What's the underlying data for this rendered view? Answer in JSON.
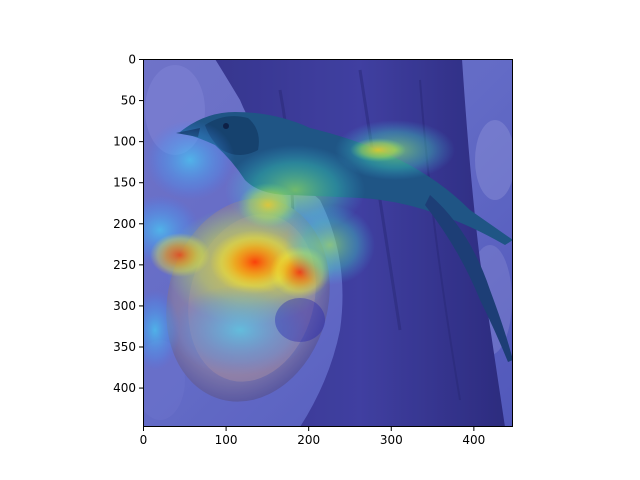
{
  "figure": {
    "kind": "heatmap overlay on photograph",
    "image_subject": "songbird perched on a tree trunk eating from a halved orange",
    "colormap": "jet",
    "frame_color": "#000000"
  },
  "axes": {
    "x": {
      "range": [
        0,
        448
      ],
      "ticks": [
        0,
        100,
        200,
        300,
        400
      ],
      "tick_labels": [
        "0",
        "100",
        "200",
        "300",
        "400"
      ]
    },
    "y": {
      "range": [
        0,
        448
      ],
      "inverted": true,
      "ticks": [
        0,
        50,
        100,
        150,
        200,
        250,
        300,
        350,
        400
      ],
      "tick_labels": [
        "0",
        "50",
        "100",
        "150",
        "200",
        "250",
        "300",
        "350",
        "400"
      ]
    }
  },
  "chart_data": {
    "type": "heatmap",
    "xlim": [
      0,
      448
    ],
    "ylim": [
      448,
      0
    ],
    "grid": false,
    "hotspots": [
      {
        "name": "orange center",
        "x": 130,
        "y": 250,
        "level": "high"
      },
      {
        "name": "orange right",
        "x": 185,
        "y": 260,
        "level": "high"
      },
      {
        "name": "left edge",
        "x": 45,
        "y": 240,
        "level": "high"
      },
      {
        "name": "legs",
        "x": 150,
        "y": 215,
        "level": "medium"
      },
      {
        "name": "tail feathers",
        "x": 300,
        "y": 115,
        "level": "medium"
      },
      {
        "name": "left lower",
        "x": 15,
        "y": 335,
        "level": "low"
      }
    ]
  }
}
